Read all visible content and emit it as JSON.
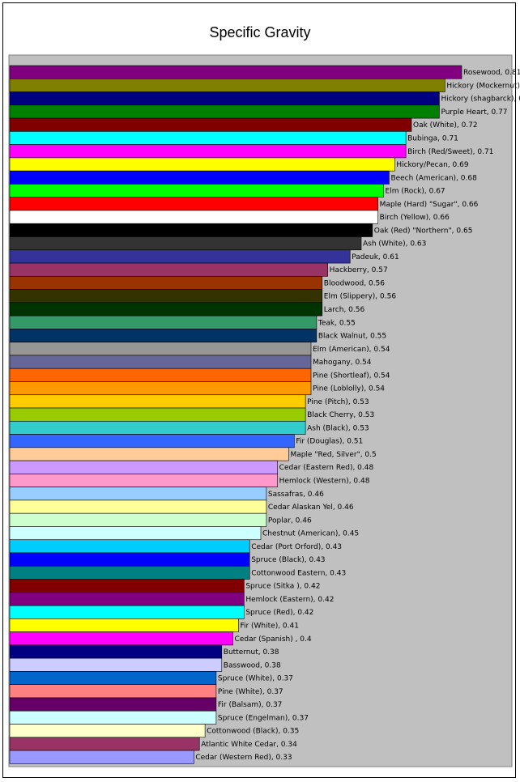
{
  "chart_data": {
    "type": "bar",
    "orientation": "horizontal",
    "title": "Specific Gravity",
    "plot_background": "#c0c0c0",
    "grid": false,
    "legend": "none",
    "xlim": [
      0,
      0.9
    ],
    "categories": [
      "Rosewood",
      "Hickory (Mockernut)",
      "Hickory (shagbarck)",
      "Purple Heart",
      "Oak (White)",
      "Bubinga",
      "Birch (Red/Sweet)",
      "Hickory/Pecan",
      "Beech (American)",
      "Elm (Rock)",
      "Maple (Hard) \"Sugar\"",
      "Birch (Yellow)",
      "Oak (Red) \"Northern\"",
      "Ash (White)",
      "Padeuk",
      "Hackberry",
      "Bloodwood",
      "Elm (Slippery)",
      "Larch",
      "Teak",
      "Black Walnut",
      "Elm (American)",
      "Mahogany",
      "Pine (Shortleaf)",
      "Pine (Loblolly)",
      "Pine (Pitch)",
      "Black Cherry",
      "Ash (Black)",
      "Fir (Douglas)",
      "Maple \"Red, Silver\"",
      "Cedar (Eastern Red)",
      "Hemlock (Western)",
      "Sassafras",
      "Cedar Alaskan Yel",
      "Poplar",
      "Chestnut (American)",
      "Cedar (Port Orford)",
      "Spruce (Black)",
      "Cottonwood Eastern",
      "Spruce (Sitka )",
      "Hemlock (Eastern)",
      "Spruce (Red)",
      "Fir (White)",
      "Cedar (Spanish)",
      "Butternut",
      "Basswood",
      "Spruce (White)",
      "Pine (White)",
      "Fir (Balsam)",
      "Spruce (Engelman)",
      "Cottonwood (Black)",
      "Atlantic White Cedar",
      "Cedar (Western Red)"
    ],
    "values": [
      0.81,
      0.78,
      0.77,
      0.77,
      0.72,
      0.71,
      0.71,
      0.69,
      0.68,
      0.67,
      0.66,
      0.66,
      0.65,
      0.63,
      0.61,
      0.57,
      0.56,
      0.56,
      0.56,
      0.55,
      0.55,
      0.54,
      0.54,
      0.54,
      0.54,
      0.53,
      0.53,
      0.53,
      0.51,
      0.5,
      0.48,
      0.48,
      0.46,
      0.46,
      0.46,
      0.45,
      0.43,
      0.43,
      0.43,
      0.42,
      0.42,
      0.42,
      0.41,
      0.4,
      0.38,
      0.38,
      0.37,
      0.37,
      0.37,
      0.37,
      0.35,
      0.34,
      0.33
    ],
    "labels": [
      "Rosewood, 0.81",
      "Hickory (Mockernut), 0.78",
      "Hickory (shagbarck), 0.77",
      "Purple Heart, 0.77",
      "Oak (White), 0.72",
      "Bubinga, 0.71",
      "Birch (Red/Sweet), 0.71",
      "Hickory/Pecan, 0.69",
      "Beech (American), 0.68",
      "Elm (Rock), 0.67",
      "Maple (Hard) \"Sugar\", 0.66",
      "Birch (Yellow), 0.66",
      "Oak (Red) \"Northern\", 0.65",
      "Ash (White), 0.63",
      "Padeuk, 0.61",
      "Hackberry, 0.57",
      "Bloodwood, 0.56",
      "Elm (Slippery), 0.56",
      "Larch, 0.56",
      "Teak, 0.55",
      "Black Walnut, 0.55",
      "Elm (American), 0.54",
      "Mahogany, 0.54",
      "Pine (Shortleaf), 0.54",
      "Pine (Loblolly), 0.54",
      "Pine (Pitch), 0.53",
      "Black Cherry, 0.53",
      "Ash (Black), 0.53",
      "Fir (Douglas), 0.51",
      "Maple \"Red, Silver\", 0.5",
      "Cedar (Eastern Red), 0.48",
      "Hemlock (Western), 0.48",
      "Sassafras, 0.46",
      "Cedar Alaskan Yel, 0.46",
      "Poplar, 0.46",
      "Chestnut (American), 0.45",
      "Cedar (Port Orford), 0.43",
      "Spruce (Black), 0.43",
      "Cottonwood Eastern, 0.43",
      "Spruce (Sitka ), 0.42",
      "Hemlock (Eastern), 0.42",
      "Spruce (Red), 0.42",
      "Fir (White), 0.41",
      "Cedar (Spanish) , 0.4",
      "Butternut, 0.38",
      "Basswood, 0.38",
      "Spruce (White), 0.37",
      "Pine (White), 0.37",
      "Fir (Balsam), 0.37",
      "Spruce (Engelman), 0.37",
      "Cottonwood (Black), 0.35",
      "Atlantic White Cedar, 0.34",
      "Cedar (Western Red), 0.33"
    ],
    "colors": [
      "#800080",
      "#808000",
      "#000080",
      "#008000",
      "#800000",
      "#00ffff",
      "#ff00ff",
      "#ffff00",
      "#0000ff",
      "#00ff00",
      "#ff0000",
      "#ffffff",
      "#000000",
      "#333333",
      "#333399",
      "#993366",
      "#993300",
      "#333300",
      "#003300",
      "#339966",
      "#003366",
      "#969696",
      "#666699",
      "#ff6600",
      "#ff9900",
      "#ffcc00",
      "#99cc00",
      "#33cccc",
      "#3366ff",
      "#ffcc99",
      "#cc99ff",
      "#ff99cc",
      "#99ccff",
      "#ffff99",
      "#ccffcc",
      "#ccffff",
      "#00ccff",
      "#0000ff",
      "#008080",
      "#800000",
      "#800080",
      "#00ffff",
      "#ffff00",
      "#ff00ff",
      "#000080",
      "#ccccff",
      "#0066cc",
      "#ff8080",
      "#660066",
      "#ccffff",
      "#ffffcc",
      "#993366",
      "#9999ff"
    ]
  }
}
